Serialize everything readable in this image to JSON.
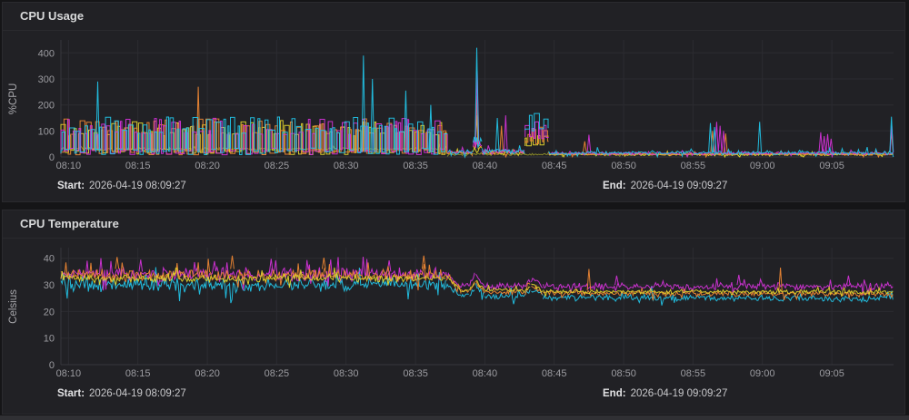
{
  "page": {
    "background": "#151517"
  },
  "panels": [
    {
      "title": "CPU Usage",
      "footer": {
        "start_label": "Start:",
        "start_value": "2026-04-19 08:09:27",
        "end_label": "End:",
        "end_value": "2026-04-19 09:09:27"
      }
    },
    {
      "title": "CPU Temperature",
      "footer": {
        "start_label": "Start:",
        "start_value": "2026-04-19 08:09:27",
        "end_label": "End:",
        "end_value": "2026-04-19 09:09:27"
      }
    }
  ],
  "chart_data": [
    {
      "type": "line",
      "title": "CPU Usage",
      "xlabel": "",
      "ylabel": "%CPU",
      "xlim": [
        9.45,
        69.45
      ],
      "ylim": [
        0,
        450
      ],
      "grid": true,
      "legend": "none",
      "spike_base": 18,
      "y_ticks": [
        0,
        100,
        200,
        300,
        400
      ],
      "x_ticks": [
        {
          "t": 10,
          "label": "08:10"
        },
        {
          "t": 15,
          "label": "08:15"
        },
        {
          "t": 20,
          "label": "08:20"
        },
        {
          "t": 25,
          "label": "08:25"
        },
        {
          "t": 30,
          "label": "08:30"
        },
        {
          "t": 35,
          "label": "08:35"
        },
        {
          "t": 40,
          "label": "08:40"
        },
        {
          "t": 45,
          "label": "08:45"
        },
        {
          "t": 50,
          "label": "08:50"
        },
        {
          "t": 55,
          "label": "08:55"
        },
        {
          "t": 60,
          "label": "09:00"
        },
        {
          "t": 65,
          "label": "09:05"
        }
      ],
      "series": [
        {
          "name": "olive",
          "color": "#8f8f27",
          "seed": 55,
          "segments": [
            [
              "n",
              9.45,
              37.3,
              31,
              31,
              6
            ],
            [
              "n",
              37.3,
              69.45,
              10,
              10,
              5
            ]
          ],
          "spikes": []
        },
        {
          "name": "yellow",
          "color": "#e0d32c",
          "seed": 44,
          "segments": [
            [
              "sq",
              9.45,
              37.3,
              8,
              140
            ],
            [
              "n",
              37.3,
              39.15,
              14,
              14,
              8
            ],
            [
              "n",
              39.15,
              39.8,
              30,
              30,
              16
            ],
            [
              "n",
              39.8,
              42.9,
              15,
              15,
              8
            ],
            [
              "sq",
              42.9,
              44.6,
              40,
              95
            ],
            [
              "n",
              44.6,
              69.45,
              9,
              9,
              5
            ]
          ],
          "spikes": [
            [
              39.4,
              160,
              30
            ]
          ]
        },
        {
          "name": "orange",
          "color": "#ec8633",
          "seed": 33,
          "segments": [
            [
              "sq",
              9.45,
              37.3,
              8,
              148
            ],
            [
              "n",
              37.3,
              39.15,
              16,
              16,
              9
            ],
            [
              "n",
              39.15,
              39.8,
              38,
              38,
              20
            ],
            [
              "n",
              39.8,
              42.9,
              17,
              17,
              9
            ],
            [
              "sq",
              42.9,
              44.6,
              50,
              115
            ],
            [
              "n",
              44.6,
              69.45,
              11,
              11,
              6
            ]
          ],
          "spikes": [
            [
              19.35,
              270
            ],
            [
              39.4,
              235,
              40
            ],
            [
              41.2,
              120
            ],
            [
              47.2,
              60
            ],
            [
              56.4,
              100
            ],
            [
              57.35,
              90
            ],
            [
              69.3,
              95
            ]
          ]
        },
        {
          "name": "magenta",
          "color": "#d232d6",
          "seed": 22,
          "segments": [
            [
              "sq",
              9.45,
              37.3,
              8,
              150
            ],
            [
              "n",
              37.3,
              39.15,
              18,
              18,
              11
            ],
            [
              "n",
              39.15,
              39.8,
              50,
              50,
              30
            ],
            [
              "n",
              39.8,
              42.9,
              20,
              20,
              12
            ],
            [
              "sq",
              42.9,
              44.6,
              70,
              140
            ],
            [
              "n",
              44.6,
              69.45,
              14,
              14,
              8
            ]
          ],
          "spikes": [
            [
              39.45,
              330,
              50
            ],
            [
              41.5,
              160
            ],
            [
              47.5,
              85
            ],
            [
              56.7,
              135
            ],
            [
              56.95,
              120
            ],
            [
              57.2,
              100
            ],
            [
              64.2,
              95
            ],
            [
              64.45,
              80
            ],
            [
              64.7,
              88
            ],
            [
              64.95,
              70
            ],
            [
              69.32,
              120
            ]
          ]
        },
        {
          "name": "cyan",
          "color": "#22c3e6",
          "seed": 11,
          "segments": [
            [
              "sq",
              9.45,
              37.3,
              8,
              155
            ],
            [
              "n",
              37.3,
              39.15,
              20,
              20,
              12
            ],
            [
              "n",
              39.15,
              39.8,
              55,
              55,
              35
            ],
            [
              "n",
              39.8,
              42.9,
              22,
              22,
              13
            ],
            [
              "sq",
              42.9,
              44.6,
              100,
              170
            ],
            [
              "n",
              44.6,
              69.45,
              16,
              16,
              9
            ]
          ],
          "spikes": [
            [
              12.1,
              290
            ],
            [
              31.25,
              390
            ],
            [
              31.9,
              300
            ],
            [
              34.3,
              255
            ],
            [
              36.1,
              200
            ],
            [
              39.42,
              420,
              60
            ],
            [
              40.9,
              150
            ],
            [
              56.25,
              130
            ],
            [
              56.55,
              115
            ],
            [
              59.8,
              135
            ],
            [
              69.3,
              155
            ]
          ]
        }
      ]
    },
    {
      "type": "line",
      "title": "CPU Temperature",
      "xlabel": "",
      "ylabel": "Celsius",
      "xlim": [
        9.45,
        69.45
      ],
      "ylim": [
        0,
        44
      ],
      "grid": true,
      "legend": "none",
      "spike_base": 26,
      "y_ticks": [
        0,
        10,
        20,
        30,
        40
      ],
      "x_ticks": [
        {
          "t": 10,
          "label": "08:10"
        },
        {
          "t": 15,
          "label": "08:15"
        },
        {
          "t": 20,
          "label": "08:20"
        },
        {
          "t": 25,
          "label": "08:25"
        },
        {
          "t": 30,
          "label": "08:30"
        },
        {
          "t": 35,
          "label": "08:35"
        },
        {
          "t": 40,
          "label": "08:40"
        },
        {
          "t": 45,
          "label": "08:45"
        },
        {
          "t": 50,
          "label": "08:50"
        },
        {
          "t": 55,
          "label": "08:55"
        },
        {
          "t": 60,
          "label": "09:00"
        },
        {
          "t": 65,
          "label": "09:05"
        }
      ],
      "series": [
        {
          "name": "cyan",
          "color": "#22c3e6",
          "seed": 99,
          "segments": [
            [
              "n",
              9.45,
              37.2,
              30,
              30,
              3
            ],
            [
              "n",
              37.2,
              38.3,
              30,
              26,
              2
            ],
            [
              "n",
              38.3,
              38.9,
              26,
              26,
              1.5
            ],
            [
              "n",
              38.9,
              39.35,
              26,
              30,
              1.5
            ],
            [
              "n",
              39.35,
              40,
              30,
              25.8,
              1.5
            ],
            [
              "n",
              40,
              42.9,
              25.6,
              25.6,
              1.5
            ],
            [
              "n",
              42.9,
              43.35,
              25.6,
              28.5,
              1.4
            ],
            [
              "n",
              43.35,
              44.2,
              28.5,
              25.4,
              1.4
            ],
            [
              "n",
              44.2,
              69.45,
              25.4,
              24.8,
              1.5
            ]
          ],
          "spikes": [
            [
              52,
              29.5,
              26
            ]
          ]
        },
        {
          "name": "magenta",
          "color": "#d232d6",
          "seed": 66,
          "segments": [
            [
              "n",
              9.45,
              37.2,
              34,
              34,
              3
            ],
            [
              "n",
              37.2,
              38.3,
              34,
              29.5,
              2
            ],
            [
              "n",
              38.3,
              38.9,
              29.5,
              29.5,
              1.6
            ],
            [
              "n",
              38.9,
              39.35,
              29.5,
              34,
              1.6
            ],
            [
              "n",
              39.35,
              40,
              34,
              29.5,
              1.6
            ],
            [
              "n",
              40,
              42.9,
              29.3,
              29.3,
              1.6
            ],
            [
              "n",
              42.9,
              43.35,
              29.3,
              32.5,
              1.5
            ],
            [
              "n",
              43.35,
              44.2,
              32.5,
              29,
              1.5
            ],
            [
              "n",
              44.2,
              69.45,
              29.5,
              29.5,
              1.6
            ]
          ],
          "spikes": [
            [
              15.2,
              39.5,
              35
            ],
            [
              24.6,
              39.8,
              35
            ],
            [
              33.1,
              39.2,
              35
            ],
            [
              49.5,
              33.5,
              30
            ],
            [
              58.3,
              33.8,
              30
            ],
            [
              66.2,
              33.5,
              30
            ]
          ]
        },
        {
          "name": "orange",
          "color": "#ec8633",
          "seed": 77,
          "segments": [
            [
              "n",
              9.45,
              37.2,
              33.5,
              33.5,
              2.8
            ],
            [
              "n",
              37.2,
              38.3,
              33.5,
              27.5,
              2
            ],
            [
              "n",
              38.3,
              38.9,
              27.5,
              27.5,
              1.2
            ],
            [
              "n",
              38.9,
              39.35,
              27.5,
              31.5,
              1.2
            ],
            [
              "n",
              39.35,
              40,
              31.5,
              27.2,
              1.2
            ],
            [
              "n",
              40,
              42.9,
              27.2,
              27.2,
              1.2
            ],
            [
              "n",
              42.9,
              43.35,
              27.2,
              30,
              1.2
            ],
            [
              "n",
              43.35,
              44.2,
              30,
              27,
              1.2
            ],
            [
              "n",
              44.2,
              69.45,
              27,
              26.5,
              1.2
            ]
          ],
          "spikes": [
            [
              13.5,
              40.5,
              36
            ],
            [
              21.8,
              41,
              36
            ],
            [
              28.4,
              40.2,
              36
            ],
            [
              35.6,
              41,
              36
            ],
            [
              47.5,
              36,
              28
            ],
            [
              61.3,
              36.5,
              27
            ]
          ]
        },
        {
          "name": "yellow",
          "color": "#e0d32c",
          "seed": 88,
          "segments": [
            [
              "n",
              9.45,
              37.2,
              32.5,
              32.5,
              1.8
            ],
            [
              "n",
              37.2,
              38.3,
              32.5,
              28,
              1.5
            ],
            [
              "n",
              38.3,
              38.9,
              28,
              28,
              1
            ],
            [
              "n",
              38.9,
              39.35,
              28,
              31.5,
              1
            ],
            [
              "n",
              39.35,
              40,
              31.5,
              27.8,
              1
            ],
            [
              "n",
              40,
              42.9,
              27.8,
              27.8,
              1
            ],
            [
              "n",
              42.9,
              43.35,
              27.8,
              30,
              1
            ],
            [
              "n",
              43.35,
              44.2,
              30,
              27.6,
              1
            ],
            [
              "n",
              44.2,
              69.45,
              27.6,
              27.2,
              1
            ]
          ],
          "spikes": []
        }
      ]
    }
  ]
}
